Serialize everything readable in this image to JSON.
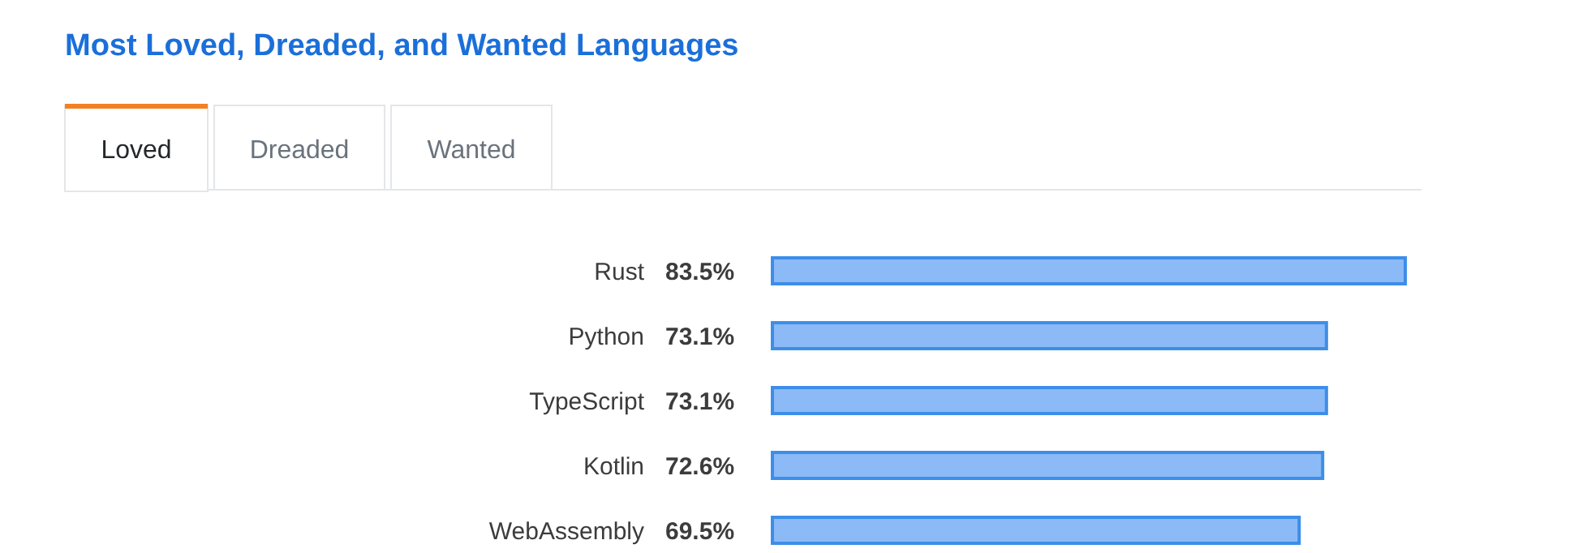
{
  "chart_data": {
    "type": "bar",
    "orientation": "horizontal",
    "title": "Most Loved, Dreaded, and Wanted Languages",
    "categories": [
      "Rust",
      "Python",
      "TypeScript",
      "Kotlin",
      "WebAssembly"
    ],
    "values": [
      83.5,
      73.1,
      73.1,
      72.6,
      69.5
    ],
    "value_labels": [
      "83.5%",
      "73.1%",
      "73.1%",
      "72.6%",
      "69.5%"
    ],
    "color": "#8cbaf7",
    "annotations": [
      "Loved",
      "Dreaded",
      "Wanted"
    ]
  }
}
